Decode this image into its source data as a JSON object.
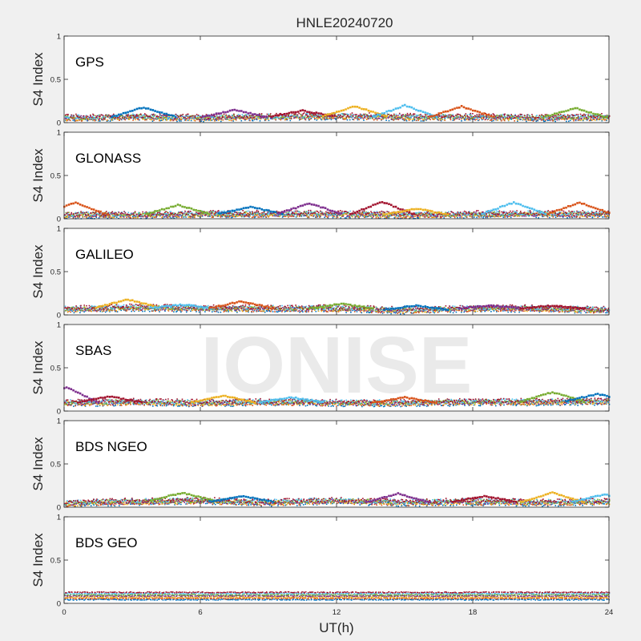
{
  "chart_data": {
    "type": "scatter",
    "title": "HNLE20240720",
    "xlabel": "UT(h)",
    "xlim": [
      0,
      24
    ],
    "xticks": [
      "0",
      "6",
      "12",
      "18",
      "24"
    ],
    "ylabel": "S4 Index",
    "ylim": [
      0,
      1
    ],
    "yticks": [
      "0",
      "0.5",
      "1"
    ],
    "grid": false,
    "watermark": "IONISE",
    "series_colors": [
      "#0072bd",
      "#d95319",
      "#edb120",
      "#7e2f8e",
      "#77ac30",
      "#4dbeee",
      "#a2142f"
    ],
    "panels": [
      {
        "label": "GPS",
        "baseline": [
          [
            0,
            0.06
          ],
          [
            3,
            0.07
          ],
          [
            6,
            0.06
          ],
          [
            9,
            0.07
          ],
          [
            12,
            0.08
          ],
          [
            15,
            0.07
          ],
          [
            18,
            0.07
          ],
          [
            21,
            0.06
          ],
          [
            24,
            0.07
          ]
        ],
        "peaks": [
          [
            3.5,
            0.18
          ],
          [
            7.5,
            0.15
          ],
          [
            10.5,
            0.14
          ],
          [
            12.8,
            0.19
          ],
          [
            15,
            0.2
          ],
          [
            17.5,
            0.19
          ],
          [
            22.5,
            0.17
          ]
        ]
      },
      {
        "label": "GLONASS",
        "baseline": [
          [
            0,
            0.05
          ],
          [
            3,
            0.05
          ],
          [
            6,
            0.06
          ],
          [
            9,
            0.06
          ],
          [
            12,
            0.06
          ],
          [
            15,
            0.05
          ],
          [
            18,
            0.06
          ],
          [
            21,
            0.06
          ],
          [
            24,
            0.06
          ]
        ],
        "peaks": [
          [
            0.5,
            0.19
          ],
          [
            5,
            0.16
          ],
          [
            8.2,
            0.14
          ],
          [
            10.8,
            0.18
          ],
          [
            14,
            0.2
          ],
          [
            15.5,
            0.12
          ],
          [
            19.8,
            0.19
          ],
          [
            22.7,
            0.19
          ]
        ]
      },
      {
        "label": "GALILEO",
        "baseline": [
          [
            0,
            0.07
          ],
          [
            3,
            0.09
          ],
          [
            6,
            0.08
          ],
          [
            9,
            0.08
          ],
          [
            12,
            0.08
          ],
          [
            15,
            0.06
          ],
          [
            18,
            0.08
          ],
          [
            21,
            0.08
          ],
          [
            24,
            0.06
          ]
        ],
        "peaks": [
          [
            2.8,
            0.18
          ],
          [
            5.2,
            0.12
          ],
          [
            7.8,
            0.16
          ],
          [
            12.2,
            0.13
          ],
          [
            15.5,
            0.11
          ],
          [
            18.8,
            0.11
          ],
          [
            21.5,
            0.11
          ]
        ]
      },
      {
        "label": "SBAS",
        "baseline": [
          [
            0,
            0.1
          ],
          [
            3,
            0.11
          ],
          [
            6,
            0.1
          ],
          [
            9,
            0.11
          ],
          [
            12,
            0.1
          ],
          [
            15,
            0.1
          ],
          [
            18,
            0.11
          ],
          [
            21,
            0.11
          ],
          [
            24,
            0.12
          ]
        ],
        "peaks": [
          [
            0.1,
            0.28
          ],
          [
            2,
            0.17
          ],
          [
            7,
            0.18
          ],
          [
            10,
            0.16
          ],
          [
            15,
            0.16
          ],
          [
            21.5,
            0.22
          ],
          [
            23.5,
            0.2
          ]
        ]
      },
      {
        "label": "BDS NGEO",
        "baseline": [
          [
            0,
            0.05
          ],
          [
            3,
            0.07
          ],
          [
            6,
            0.08
          ],
          [
            9,
            0.06
          ],
          [
            12,
            0.08
          ],
          [
            15,
            0.06
          ],
          [
            18,
            0.07
          ],
          [
            21,
            0.06
          ],
          [
            24,
            0.07
          ]
        ],
        "peaks": [
          [
            5.2,
            0.17
          ],
          [
            7.8,
            0.13
          ],
          [
            14.7,
            0.16
          ],
          [
            18.5,
            0.13
          ],
          [
            21.5,
            0.17
          ],
          [
            23.8,
            0.15
          ]
        ]
      },
      {
        "label": "BDS GEO",
        "baseline": [
          [
            0,
            0.12
          ],
          [
            6,
            0.13
          ],
          [
            12,
            0.12
          ],
          [
            18,
            0.12
          ],
          [
            24,
            0.12
          ]
        ],
        "peaks": []
      }
    ]
  }
}
